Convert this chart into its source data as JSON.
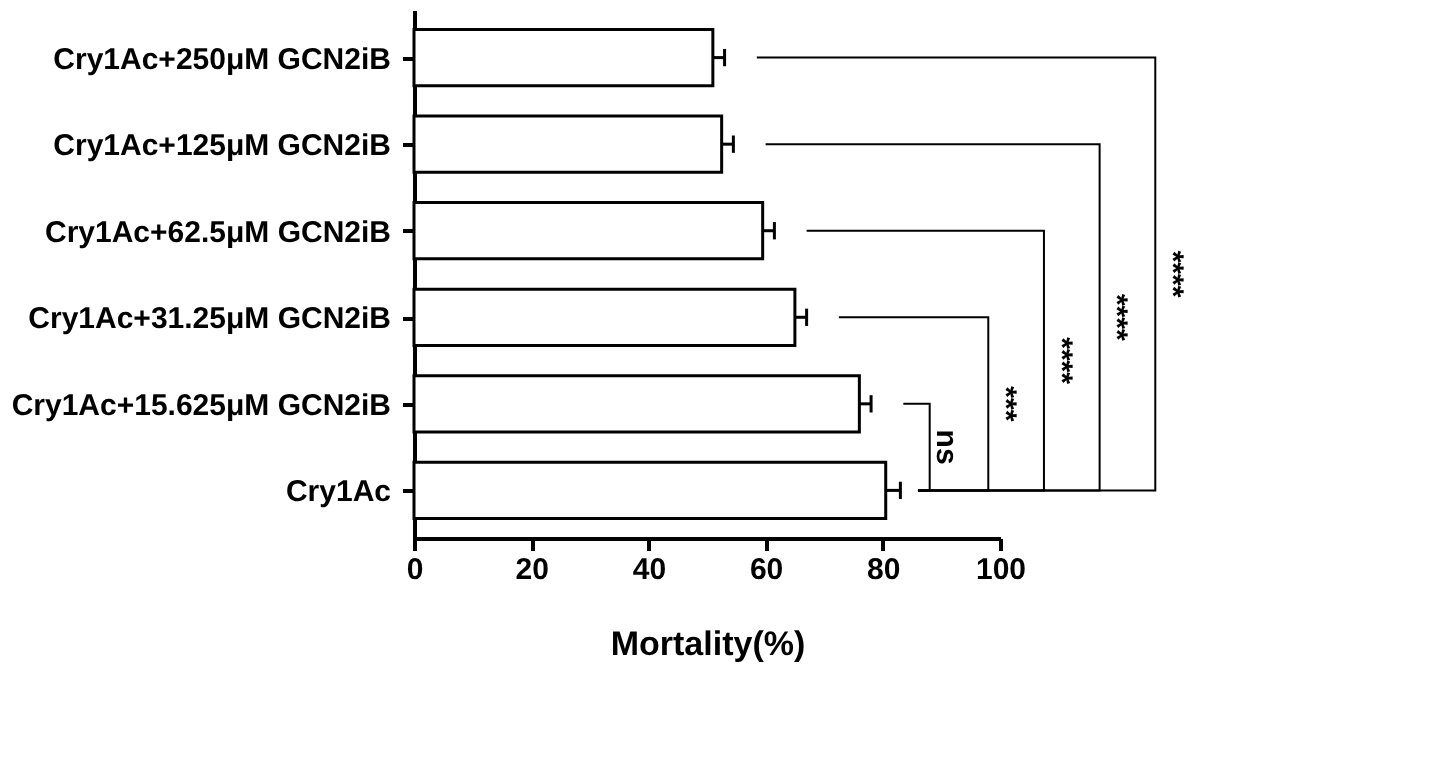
{
  "chart_data": {
    "type": "bar",
    "orientation": "horizontal",
    "xlabel": "Mortality(%)",
    "categories": [
      "Cry1Ac+250μM GCN2iB",
      "Cry1Ac+125μM GCN2iB",
      "Cry1Ac+62.5μM GCN2iB",
      "Cry1Ac+31.25μM GCN2iB",
      "Cry1Ac+15.625μM GCN2iB",
      "Cry1Ac"
    ],
    "values": [
      51,
      52.5,
      59.5,
      65,
      76,
      80.5
    ],
    "errors": [
      2,
      2,
      2,
      2,
      2,
      2.5
    ],
    "color": "#ffffff",
    "xlim": [
      0,
      100
    ],
    "xticks": [
      0,
      20,
      40,
      60,
      80,
      100
    ],
    "grid": false,
    "legend": false,
    "annotations": [
      "****",
      "****",
      "****",
      "***",
      "ns"
    ]
  }
}
